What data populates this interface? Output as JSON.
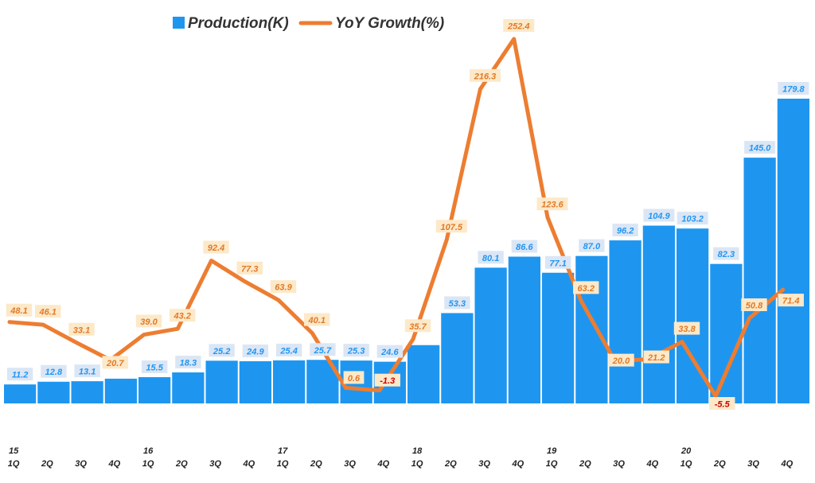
{
  "chart_data": {
    "type": "bar",
    "title": "",
    "legend": {
      "placement": "top-center",
      "items": [
        {
          "name": "Production(K)",
          "kind": "bar",
          "color": "#1e96f0"
        },
        {
          "name": "YoY Growth(%)",
          "kind": "line",
          "color": "#ed7d31"
        }
      ]
    },
    "categories": [
      "1Q",
      "2Q",
      "3Q",
      "4Q",
      "1Q",
      "2Q",
      "3Q",
      "4Q",
      "1Q",
      "2Q",
      "3Q",
      "4Q",
      "1Q",
      "2Q",
      "3Q",
      "4Q",
      "1Q",
      "2Q",
      "3Q",
      "4Q",
      "1Q",
      "2Q",
      "3Q",
      "4Q"
    ],
    "years": [
      "15",
      "",
      "",
      "",
      "16",
      "",
      "",
      "",
      "17",
      "",
      "",
      "",
      "18",
      "",
      "",
      "",
      "19",
      "",
      "",
      "",
      "20",
      "",
      "",
      ""
    ],
    "series": [
      {
        "name": "Production(K)",
        "type": "bar",
        "values": [
          11.2,
          12.8,
          13.1,
          14.6,
          15.5,
          18.3,
          25.2,
          24.9,
          25.4,
          25.7,
          25.3,
          24.6,
          34.4,
          53.3,
          80.1,
          86.6,
          77.1,
          87.0,
          96.2,
          104.9,
          103.2,
          82.3,
          145.0,
          179.8
        ],
        "labels": [
          "11.2",
          "12.8",
          "13.1",
          "",
          "15.5",
          "18.3",
          "25.2",
          "24.9",
          "25.4",
          "25.7",
          "25.3",
          "24.6",
          "",
          "53.3",
          "80.1",
          "86.6",
          "77.1",
          "87.0",
          "96.2",
          "104.9",
          "103.2",
          "82.3",
          "145.0",
          "179.8"
        ]
      },
      {
        "name": "YoY Growth(%)",
        "type": "line",
        "values": [
          48.1,
          46.1,
          33.1,
          20.7,
          39.0,
          43.2,
          92.4,
          77.3,
          63.9,
          40.1,
          0.6,
          -1.3,
          35.7,
          107.5,
          216.3,
          252.4,
          123.6,
          63.2,
          20.0,
          21.2,
          33.8,
          -5.5,
          50.8,
          71.4
        ],
        "labels": [
          "48.1",
          "46.1",
          "33.1",
          "20.7",
          "39.0",
          "43.2",
          "92.4",
          "77.3",
          "63.9",
          "40.1",
          "0.6",
          "-1.3",
          "35.7",
          "107.5",
          "216.3",
          "252.4",
          "123.6",
          "63.2",
          "20.0",
          "21.2",
          "33.8",
          "-5.5",
          "50.8",
          "71.4"
        ]
      }
    ],
    "xlabel": "",
    "ylabel": "",
    "ylim_bar": [
      0,
      190
    ],
    "ylim_line": [
      -15,
      265
    ],
    "grid": false
  }
}
